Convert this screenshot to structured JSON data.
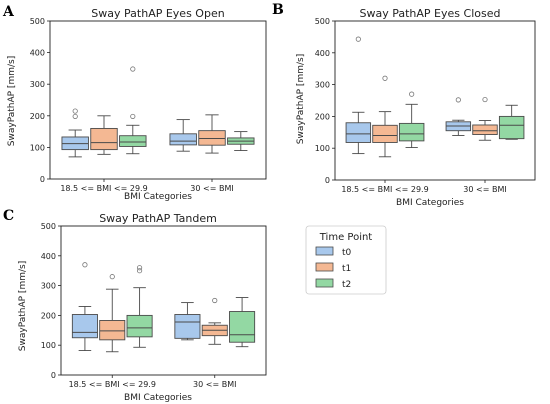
{
  "legend": {
    "title": "Time Point",
    "items": [
      "t0",
      "t1",
      "t2"
    ]
  },
  "colors": {
    "t0": "#a8c8ec",
    "t1": "#f4b893",
    "t2": "#93d8a3",
    "line": "#4a4a4a",
    "frame": "#222222"
  },
  "chart_data": [
    {
      "panel": "A",
      "type": "box",
      "title": "Sway PathAP Eyes Open",
      "xlabel": "BMI Categories",
      "ylabel": "SwayPathAP [mm/s]",
      "ylim": [
        0,
        500
      ],
      "yticks": [
        0,
        100,
        200,
        300,
        400,
        500
      ],
      "categories": [
        "18.5 <= BMI <= 29.9",
        "30 <= BMI"
      ],
      "series": [
        {
          "name": "t0",
          "boxes": [
            {
              "whislo": 70,
              "q1": 93,
              "med": 112,
              "q3": 133,
              "whishi": 155,
              "fliers": [
                198,
                215
              ]
            },
            {
              "whislo": 88,
              "q1": 108,
              "med": 120,
              "q3": 143,
              "whishi": 188,
              "fliers": []
            }
          ]
        },
        {
          "name": "t1",
          "boxes": [
            {
              "whislo": 78,
              "q1": 93,
              "med": 115,
              "q3": 160,
              "whishi": 200,
              "fliers": []
            },
            {
              "whislo": 82,
              "q1": 107,
              "med": 128,
              "q3": 153,
              "whishi": 203,
              "fliers": []
            }
          ]
        },
        {
          "name": "t2",
          "boxes": [
            {
              "whislo": 80,
              "q1": 103,
              "med": 117,
              "q3": 137,
              "whishi": 170,
              "fliers": [
                198,
                348
              ]
            },
            {
              "whislo": 90,
              "q1": 110,
              "med": 120,
              "q3": 130,
              "whishi": 150,
              "fliers": []
            }
          ]
        }
      ]
    },
    {
      "panel": "B",
      "type": "box",
      "title": "Sway PathAP Eyes Closed",
      "xlabel": "BMI Categories",
      "ylabel": "SwayPathAP [mm/s]",
      "ylim": [
        0,
        500
      ],
      "yticks": [
        0,
        100,
        200,
        300,
        400,
        500
      ],
      "categories": [
        "18.5 <= BMI <= 29.9",
        "30 <= BMI"
      ],
      "series": [
        {
          "name": "t0",
          "boxes": [
            {
              "whislo": 83,
              "q1": 118,
              "med": 145,
              "q3": 180,
              "whishi": 213,
              "fliers": [
                443
              ]
            },
            {
              "whislo": 140,
              "q1": 155,
              "med": 170,
              "q3": 183,
              "whishi": 188,
              "fliers": [
                252
              ]
            }
          ]
        },
        {
          "name": "t1",
          "boxes": [
            {
              "whislo": 73,
              "q1": 118,
              "med": 140,
              "q3": 172,
              "whishi": 215,
              "fliers": [
                320
              ]
            },
            {
              "whislo": 125,
              "q1": 143,
              "med": 155,
              "q3": 173,
              "whishi": 187,
              "fliers": [
                253
              ]
            }
          ]
        },
        {
          "name": "t2",
          "boxes": [
            {
              "whislo": 102,
              "q1": 123,
              "med": 145,
              "q3": 178,
              "whishi": 238,
              "fliers": [
                270
              ]
            },
            {
              "whislo": 128,
              "q1": 130,
              "med": 172,
              "q3": 200,
              "whishi": 235,
              "fliers": []
            }
          ]
        }
      ]
    },
    {
      "panel": "C",
      "type": "box",
      "title": "Sway PathAP Tandem",
      "xlabel": "BMI Categories",
      "ylabel": "SwayPathAP [mm/s]",
      "ylim": [
        0,
        500
      ],
      "yticks": [
        0,
        100,
        200,
        300,
        400,
        500
      ],
      "categories": [
        "18.5 <= BMI <= 29.9",
        "30 <= BMI"
      ],
      "series": [
        {
          "name": "t0",
          "boxes": [
            {
              "whislo": 82,
              "q1": 125,
              "med": 143,
              "q3": 203,
              "whishi": 230,
              "fliers": [
                370
              ]
            },
            {
              "whislo": 118,
              "q1": 123,
              "med": 178,
              "q3": 203,
              "whishi": 243,
              "fliers": []
            }
          ]
        },
        {
          "name": "t1",
          "boxes": [
            {
              "whislo": 78,
              "q1": 118,
              "med": 148,
              "q3": 183,
              "whishi": 288,
              "fliers": [
                330
              ]
            },
            {
              "whislo": 103,
              "q1": 132,
              "med": 150,
              "q3": 167,
              "whishi": 175,
              "fliers": [
                250
              ]
            }
          ]
        },
        {
          "name": "t2",
          "boxes": [
            {
              "whislo": 93,
              "q1": 128,
              "med": 158,
              "q3": 200,
              "whishi": 293,
              "fliers": [
                350,
                360
              ]
            },
            {
              "whislo": 95,
              "q1": 110,
              "med": 135,
              "q3": 213,
              "whishi": 260,
              "fliers": []
            }
          ]
        }
      ]
    }
  ]
}
